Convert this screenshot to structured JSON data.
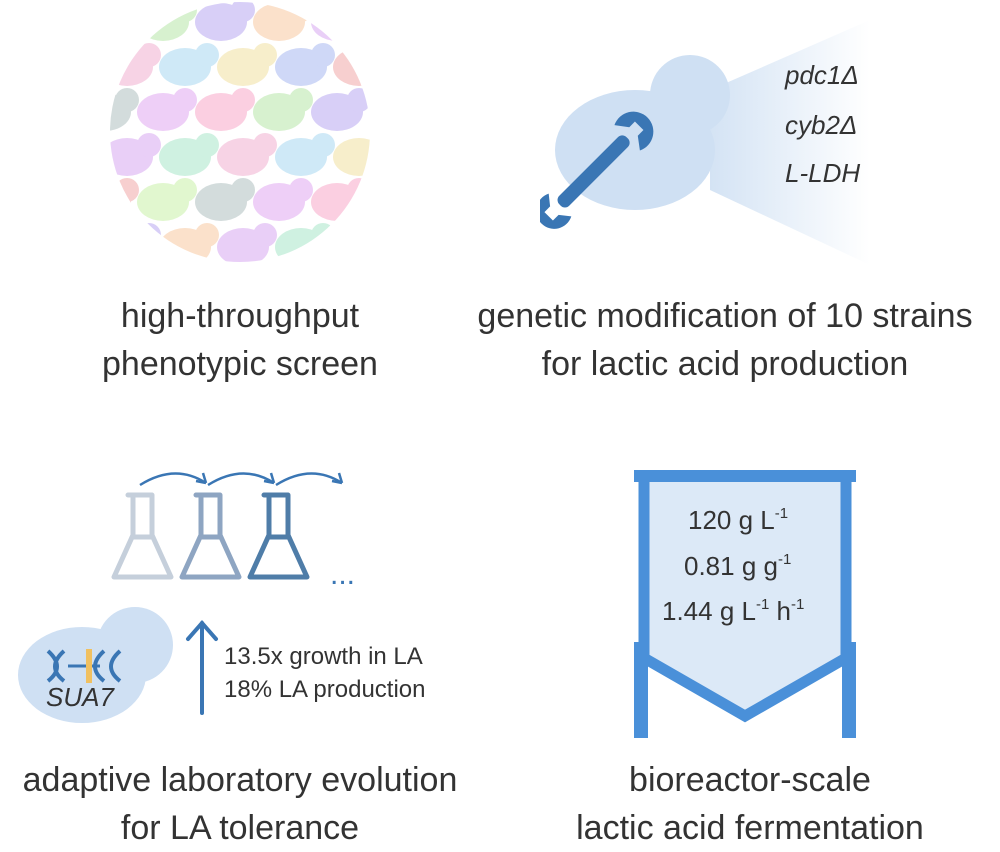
{
  "panels": {
    "screen": {
      "caption_line1": "high-throughput",
      "caption_line2": "phenotypic screen"
    },
    "genetic": {
      "genes": [
        "pdc1Δ",
        "cyb2Δ",
        "L-LDH"
      ],
      "caption_line1": "genetic modification of 10 strains",
      "caption_line2": "for lactic acid production"
    },
    "evolution": {
      "ellipsis": "...",
      "gene_label": "SUA7",
      "stat1": "13.5x growth in LA",
      "stat2": "18% LA production",
      "caption_line1": "adaptive laboratory evolution",
      "caption_line2": "for LA tolerance"
    },
    "bioreactor": {
      "metric1": {
        "value": "120 g L",
        "exp": "-1",
        "tail": ""
      },
      "metric2": {
        "value": "0.81 g g",
        "exp": "-1",
        "tail": ""
      },
      "metric3": {
        "value": "1.44 g L",
        "exp": "-1",
        "mid": " h",
        "exp2": "-1"
      },
      "caption_line1": "bioreactor-scale",
      "caption_line2": "lactic acid fermentation"
    }
  },
  "colors": {
    "blue_dark": "#3a76b4",
    "blue_light": "#cfe0f3",
    "reactor": "#4a90d9",
    "flask1": "#c5cfdb",
    "flask2": "#8ea5c2",
    "flask3": "#4f7da8"
  }
}
